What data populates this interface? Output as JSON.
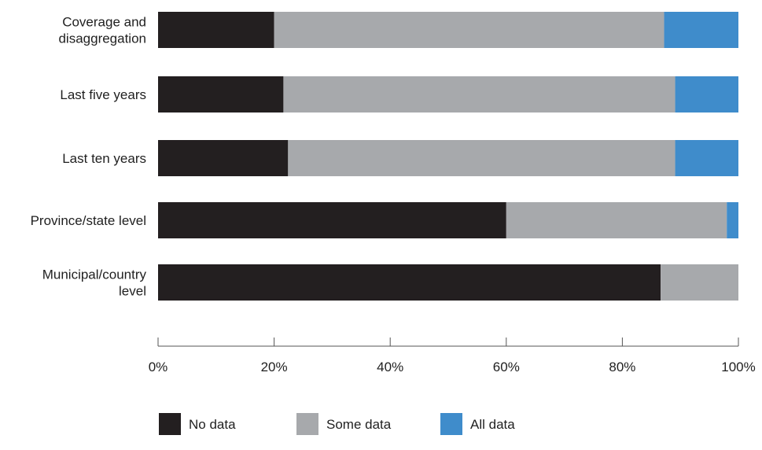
{
  "chart_data": {
    "type": "bar",
    "orientation": "horizontal",
    "stacked": true,
    "categories": [
      [
        "Coverage and",
        "disaggregation"
      ],
      [
        "Last five years"
      ],
      [
        "Last ten years"
      ],
      [
        "Province/state level"
      ],
      [
        "Municipal/country",
        "level"
      ]
    ],
    "series": [
      {
        "name": "No data",
        "color": "#231f20",
        "values": [
          20,
          21.6,
          22.4,
          60,
          86.6
        ]
      },
      {
        "name": "Some data",
        "color": "#a7a9ac",
        "values": [
          67.2,
          67.5,
          66.7,
          38,
          13.4
        ]
      },
      {
        "name": "All data",
        "color": "#3f8ccb",
        "values": [
          12.8,
          10.9,
          10.9,
          2,
          0
        ]
      }
    ],
    "xlim": [
      0,
      100
    ],
    "x_ticks": [
      "0%",
      "20%",
      "40%",
      "60%",
      "80%",
      "100%"
    ],
    "x_tick_values": [
      0,
      20,
      40,
      60,
      80,
      100
    ],
    "grid": false,
    "legend_position": "bottom-left"
  }
}
